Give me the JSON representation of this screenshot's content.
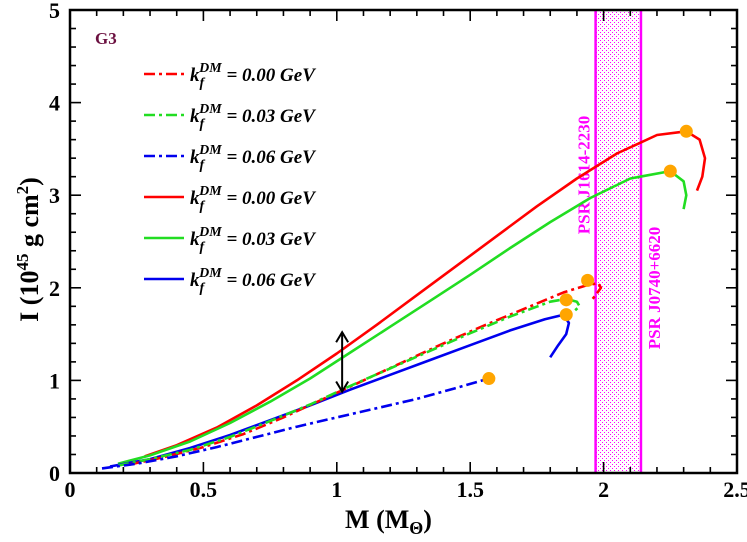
{
  "chart_data": {
    "type": "line",
    "xlabel": {
      "main": "M (M",
      "sub": "Θ",
      "close": ")"
    },
    "ylabel": {
      "main": "I (10",
      "sup": "45",
      "mid": " g cm",
      "sup2": "2",
      "close": ")"
    },
    "xlim": [
      0,
      2.5
    ],
    "ylim": [
      0,
      5
    ],
    "xticks": [
      0,
      0.5,
      1,
      1.5,
      2,
      2.5
    ],
    "xtick_labels": [
      "0",
      "0.5",
      "1",
      "1.5",
      "2",
      "2.5"
    ],
    "yticks": [
      0,
      1,
      2,
      3,
      4,
      5
    ],
    "ytick_labels": [
      "0",
      "1",
      "2",
      "3",
      "4",
      "5"
    ],
    "panel_label": "G3",
    "colors": {
      "red": "#ff0000",
      "green": "#22dd22",
      "blue": "#0000ee",
      "magenta": "#ff00ff",
      "dot": "#ffa500",
      "panel": "#6b1040"
    },
    "legend": [
      {
        "k": "k",
        "sub": "f",
        "sup": "DM",
        "rest": " = 0.00 GeV",
        "color": "#ff0000",
        "dash": "dashdot"
      },
      {
        "k": "k",
        "sub": "f",
        "sup": "DM",
        "rest": " = 0.03 GeV",
        "color": "#22dd22",
        "dash": "dashdot"
      },
      {
        "k": "k",
        "sub": "f",
        "sup": "DM",
        "rest": " = 0.06 GeV",
        "color": "#0000ee",
        "dash": "dashdot"
      },
      {
        "k": "k",
        "sub": "f",
        "sup": "DM",
        "rest": " = 0.00 GeV",
        "color": "#ff0000",
        "dash": "solid"
      },
      {
        "k": "k",
        "sub": "f",
        "sup": "DM",
        "rest": " = 0.03 GeV",
        "color": "#22dd22",
        "dash": "solid"
      },
      {
        "k": "k",
        "sub": "f",
        "sup": "DM",
        "rest": " = 0.06 GeV",
        "color": "#0000ee",
        "dash": "solid"
      }
    ],
    "series": [
      {
        "name": "red solid",
        "color": "#ff0000",
        "dash": "solid",
        "x": [
          0.28,
          0.4,
          0.55,
          0.7,
          0.85,
          1.0,
          1.15,
          1.3,
          1.45,
          1.6,
          1.75,
          1.9,
          2.05,
          2.2,
          2.31,
          2.36,
          2.38,
          2.37,
          2.35
        ],
        "y": [
          0.18,
          0.3,
          0.49,
          0.73,
          1.0,
          1.29,
          1.6,
          1.92,
          2.24,
          2.56,
          2.88,
          3.18,
          3.45,
          3.65,
          3.69,
          3.6,
          3.4,
          3.2,
          3.05
        ]
      },
      {
        "name": "green solid",
        "color": "#22dd22",
        "dash": "solid",
        "x": [
          0.18,
          0.3,
          0.45,
          0.6,
          0.75,
          0.9,
          1.05,
          1.2,
          1.35,
          1.5,
          1.65,
          1.8,
          1.95,
          2.1,
          2.25,
          2.3,
          2.31,
          2.3
        ],
        "y": [
          0.1,
          0.19,
          0.34,
          0.54,
          0.77,
          1.02,
          1.3,
          1.58,
          1.86,
          2.14,
          2.43,
          2.71,
          2.97,
          3.18,
          3.26,
          3.15,
          3.0,
          2.85
        ]
      },
      {
        "name": "blue solid",
        "color": "#0000ee",
        "dash": "solid",
        "x": [
          0.15,
          0.3,
          0.45,
          0.6,
          0.75,
          0.9,
          1.05,
          1.2,
          1.35,
          1.5,
          1.65,
          1.78,
          1.85,
          1.87,
          1.86,
          1.83,
          1.8
        ],
        "y": [
          0.07,
          0.15,
          0.27,
          0.41,
          0.57,
          0.73,
          0.9,
          1.06,
          1.22,
          1.38,
          1.54,
          1.66,
          1.71,
          1.62,
          1.5,
          1.38,
          1.25
        ]
      },
      {
        "name": "red dashdot",
        "color": "#ff0000",
        "dash": "dashdot",
        "x": [
          0.22,
          0.35,
          0.5,
          0.65,
          0.8,
          0.95,
          1.1,
          1.25,
          1.4,
          1.55,
          1.7,
          1.85,
          1.94,
          1.98,
          1.99,
          1.97,
          1.95
        ],
        "y": [
          0.09,
          0.17,
          0.28,
          0.42,
          0.6,
          0.8,
          1.0,
          1.2,
          1.4,
          1.59,
          1.77,
          1.95,
          2.03,
          2.05,
          2.0,
          1.92,
          1.85
        ]
      },
      {
        "name": "green dashdot",
        "color": "#22dd22",
        "dash": "dashdot",
        "x": [
          0.18,
          0.3,
          0.45,
          0.6,
          0.75,
          0.9,
          1.05,
          1.2,
          1.35,
          1.5,
          1.65,
          1.8,
          1.86,
          1.9,
          1.91,
          1.89,
          1.87
        ],
        "y": [
          0.08,
          0.15,
          0.25,
          0.39,
          0.56,
          0.74,
          0.94,
          1.13,
          1.32,
          1.51,
          1.69,
          1.85,
          1.88,
          1.85,
          1.8,
          1.75,
          1.72
        ]
      },
      {
        "name": "blue dashdot",
        "color": "#0000ee",
        "dash": "dashdot",
        "x": [
          0.12,
          0.25,
          0.4,
          0.55,
          0.7,
          0.85,
          1.0,
          1.15,
          1.3,
          1.45,
          1.57
        ],
        "y": [
          0.05,
          0.1,
          0.18,
          0.28,
          0.39,
          0.5,
          0.6,
          0.7,
          0.8,
          0.92,
          1.02
        ]
      }
    ],
    "max_points": [
      {
        "x": 2.31,
        "y": 3.69
      },
      {
        "x": 2.25,
        "y": 3.26
      },
      {
        "x": 1.94,
        "y": 2.08
      },
      {
        "x": 1.86,
        "y": 1.87
      },
      {
        "x": 1.86,
        "y": 1.71
      },
      {
        "x": 1.57,
        "y": 1.02
      }
    ],
    "bands": [
      {
        "label": "PSR J1614-2230",
        "x": 1.97
      },
      {
        "label": "PSR J0740+6620",
        "x": 2.14
      }
    ],
    "arrow": {
      "x": 1.02,
      "y_top": 1.52,
      "y_bottom": 0.88
    }
  }
}
